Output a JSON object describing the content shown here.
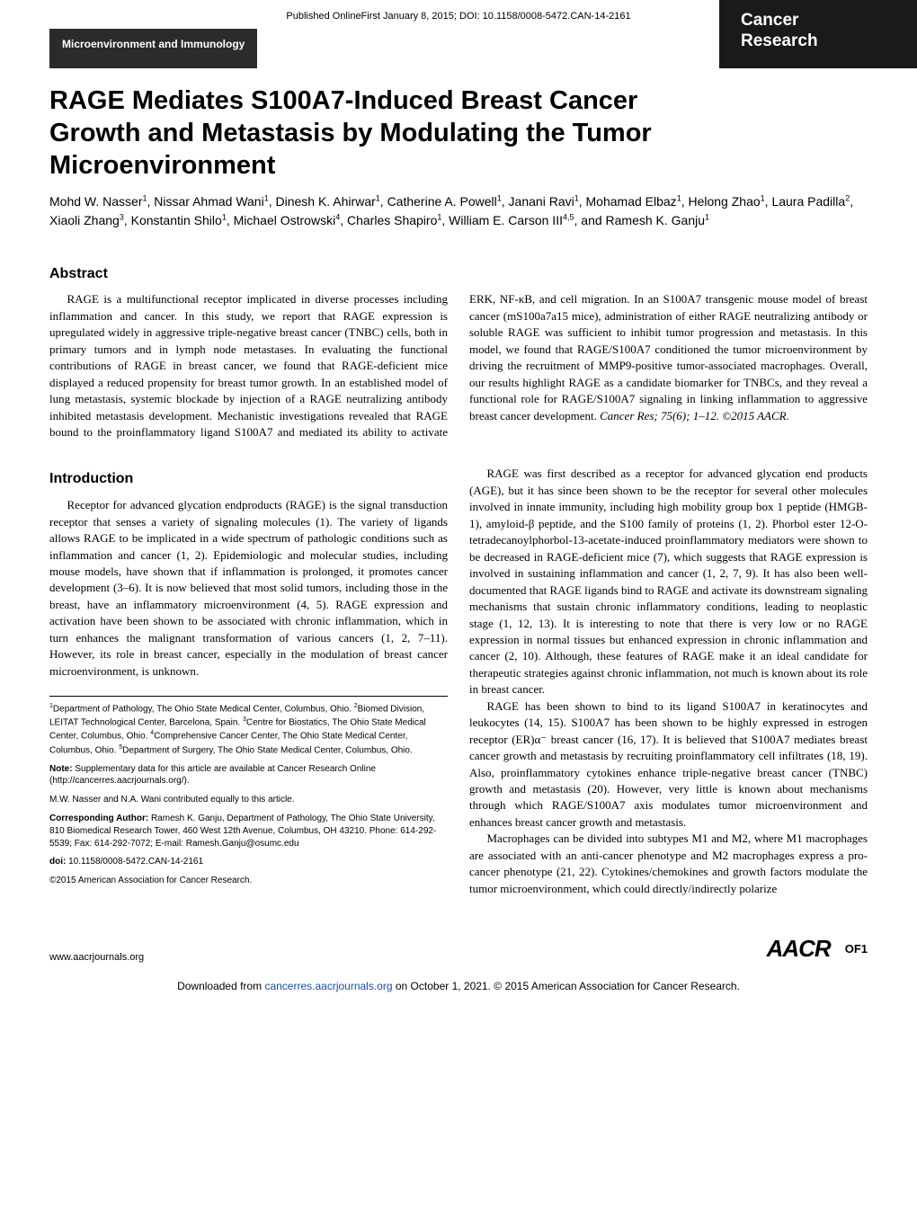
{
  "publishedLine": "Published OnlineFirst January 8, 2015; DOI: 10.1158/0008-5472.CAN-14-2161",
  "sectionLabel": "Microenvironment and Immunology",
  "journalLine1": "Cancer",
  "journalLine2": "Research",
  "title": "RAGE Mediates S100A7-Induced Breast Cancer Growth and Metastasis by Modulating the Tumor Microenvironment",
  "authorsHtml": "Mohd W. Nasser<sup>1</sup>, Nissar Ahmad Wani<sup>1</sup>, Dinesh K. Ahirwar<sup>1</sup>, Catherine A. Powell<sup>1</sup>, Janani Ravi<sup>1</sup>, Mohamad Elbaz<sup>1</sup>, Helong Zhao<sup>1</sup>, Laura Padilla<sup>2</sup>, Xiaoli Zhang<sup>3</sup>, Konstantin Shilo<sup>1</sup>, Michael Ostrowski<sup>4</sup>, Charles Shapiro<sup>1</sup>, William E. Carson III<sup>4,5</sup>, and Ramesh K. Ganju<sup>1</sup>",
  "abstractHeading": "Abstract",
  "abstractText": "RAGE is a multifunctional receptor implicated in diverse processes including inflammation and cancer. In this study, we report that RAGE expression is upregulated widely in aggressive triple-negative breast cancer (TNBC) cells, both in primary tumors and in lymph node metastases. In evaluating the functional contributions of RAGE in breast cancer, we found that RAGE-deficient mice displayed a reduced propensity for breast tumor growth. In an established model of lung metastasis, systemic blockade by injection of a RAGE neutralizing antibody inhibited metastasis development. Mechanistic investigations revealed that RAGE bound to the proinflammatory ligand S100A7 and mediated its ability to activate ERK, NF-κB, and cell migration. In an S100A7 transgenic mouse model of breast cancer (mS100a7a15 mice), administration of either RAGE neutralizing antibody or soluble RAGE was sufficient to inhibit tumor progression and metastasis. In this model, we found that RAGE/S100A7 conditioned the tumor microenvironment by driving the recruitment of MMP9-positive tumor-associated macrophages. Overall, our results highlight RAGE as a candidate biomarker for TNBCs, and they reveal a functional role for RAGE/S100A7 signaling in linking inflammation to aggressive breast cancer development. ",
  "abstractCitation": "Cancer Res; 75(6); 1–12. ©2015 AACR.",
  "introHeading": "Introduction",
  "introPara1": "Receptor for advanced glycation endproducts (RAGE) is the signal transduction receptor that senses a variety of signaling molecules (1). The variety of ligands allows RAGE to be implicated in a wide spectrum of pathologic conditions such as inflammation and cancer (1, 2). Epidemiologic and molecular studies, including mouse models, have shown that if inflammation is prolonged, it promotes cancer development (3–6). It is now believed that most solid tumors, including those in the breast, have an inflammatory microenvironment (4, 5). RAGE expression and activation have been shown to be associated with chronic inflammation, which in turn enhances the malignant transformation of various cancers (1, 2, 7–11). However, its role in breast cancer, especially in the modulation of breast cancer microenvironment, is unknown.",
  "introPara2": "RAGE was first described as a receptor for advanced glycation end products (AGE), but it has since been shown to be the receptor for several other molecules involved in innate immunity, including high mobility group box 1 peptide (HMGB-1), amyloid-β peptide, and the S100 family of proteins (1, 2). Phorbol ester 12-O-tetradecanoylphorbol-13-acetate-induced proinflammatory mediators were shown to be decreased in RAGE-deficient mice (7), which suggests that RAGE expression is involved in sustaining inflammation and cancer (1, 2, 7, 9). It has also been well-documented that RAGE ligands bind to RAGE and activate its downstream signaling mechanisms that sustain chronic inflammatory conditions, leading to neoplastic stage (1, 12, 13). It is interesting to note that there is very low or no RAGE expression in normal tissues but enhanced expression in chronic inflammation and cancer (2, 10). Although, these features of RAGE make it an ideal candidate for therapeutic strategies against chronic inflammation, not much is known about its role in breast cancer.",
  "introPara3": "RAGE has been shown to bind to its ligand S100A7 in keratinocytes and leukocytes (14, 15). S100A7 has been shown to be highly expressed in estrogen receptor (ER)α⁻ breast cancer (16, 17). It is believed that S100A7 mediates breast cancer growth and metastasis by recruiting proinflammatory cell infiltrates (18, 19). Also, proinflammatory cytokines enhance triple-negative breast cancer (TNBC) growth and metastasis (20). However, very little is known about mechanisms through which RAGE/S100A7 axis modulates tumor microenvironment and enhances breast cancer growth and metastasis.",
  "introPara4": "Macrophages can be divided into subtypes M1 and M2, where M1 macrophages are associated with an anti-cancer phenotype and M2 macrophages express a pro-cancer phenotype (21, 22). Cytokines/chemokines and growth factors modulate the tumor microenvironment, which could directly/indirectly polarize",
  "affiliationsHtml": "<sup>1</sup>Department of Pathology, The Ohio State Medical Center, Columbus, Ohio. <sup>2</sup>Biomed Division, LEITAT Technological Center, Barcelona, Spain. <sup>3</sup>Centre for Biostatics, The Ohio State Medical Center, Columbus, Ohio. <sup>4</sup>Comprehensive Cancer Center, The Ohio State Medical Center, Columbus, Ohio. <sup>5</sup>Department of Surgery, The Ohio State Medical Center, Columbus, Ohio.",
  "noteLabel": "Note:",
  "noteText": " Supplementary data for this article are available at Cancer Research Online (http://cancerres.aacrjournals.org/).",
  "contribNote": "M.W. Nasser and N.A. Wani contributed equally to this article.",
  "correspondingLabel": "Corresponding Author:",
  "correspondingText": " Ramesh K. Ganju, Department of Pathology, The Ohio State University, 810 Biomedical Research Tower, 460 West 12th Avenue, Columbus, OH 43210. Phone: 614-292-5539; Fax: 614-292-7072; E-mail: Ramesh.Ganju@osumc.edu",
  "doiLabel": "doi:",
  "doiText": " 10.1158/0008-5472.CAN-14-2161",
  "copyrightText": "©2015 American Association for Cancer Research.",
  "footerUrl": "www.aacrjournals.org",
  "aacrLogo": "AACR",
  "pageNumber": "OF1",
  "downloadPrefix": "Downloaded from ",
  "downloadLink": "cancerres.aacrjournals.org",
  "downloadSuffix": " on October 1, 2021. © 2015 American Association for Cancer Research."
}
